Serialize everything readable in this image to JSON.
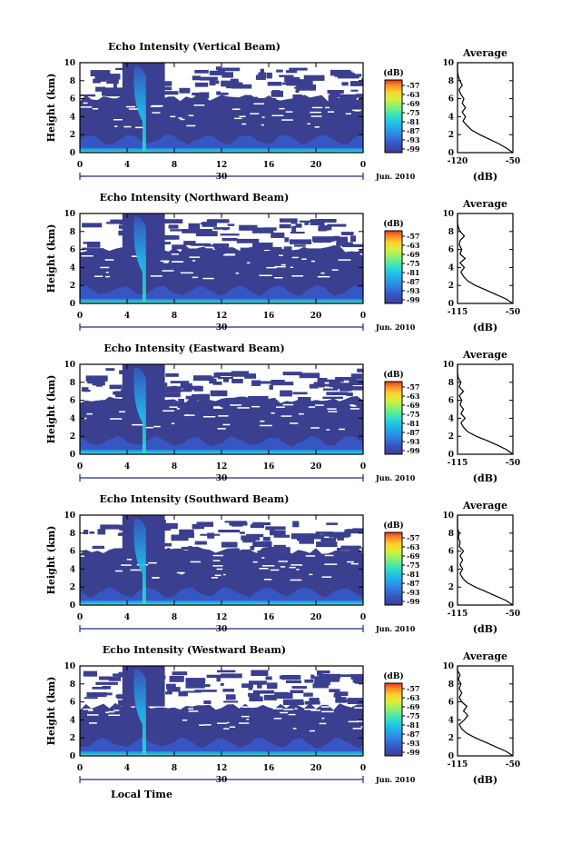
{
  "chart_data": [
    {
      "type": "heatmap",
      "title": "Echo Intensity (Vertical Beam)",
      "ylabel": "Height (km)",
      "xlabel": "",
      "x_ticks": [
        "0",
        "4",
        "8",
        "12",
        "16",
        "20",
        "0"
      ],
      "y_ticks": [
        "0",
        "2",
        "4",
        "6",
        "8",
        "10"
      ],
      "xlim": [
        0,
        24
      ],
      "ylim": [
        0,
        10
      ],
      "day_label": "30",
      "month_label": "Jun. 2010",
      "colorbar": {
        "unit": "(dB)",
        "ticks": [
          "-57",
          "-63",
          "-69",
          "-75",
          "-81",
          "-87",
          "-93",
          "-99"
        ]
      },
      "average": {
        "title": "Average",
        "xlabel": "(dB)",
        "x_ticks": [
          "-120",
          "-50"
        ],
        "xlim": [
          -120,
          -50
        ],
        "y_ticks": [
          "0",
          "2",
          "4",
          "6",
          "8",
          "10"
        ],
        "profile": [
          [
            -50,
            0
          ],
          [
            -58,
            0.5
          ],
          [
            -68,
            1.0
          ],
          [
            -80,
            1.5
          ],
          [
            -92,
            2.0
          ],
          [
            -102,
            2.5
          ],
          [
            -108,
            3.0
          ],
          [
            -113,
            3.5
          ],
          [
            -110,
            4.0
          ],
          [
            -114,
            4.5
          ],
          [
            -110,
            5.0
          ],
          [
            -114,
            5.5
          ],
          [
            -112,
            6.0
          ],
          [
            -116,
            6.5
          ],
          [
            -118,
            7.0
          ],
          [
            -114,
            7.5
          ],
          [
            -117,
            8.0
          ],
          [
            -119,
            8.5
          ],
          [
            -120,
            9.0
          ],
          [
            -120,
            9.5
          ],
          [
            -120,
            10.0
          ]
        ]
      }
    },
    {
      "type": "heatmap",
      "title": "Echo Intensity (Northward Beam)",
      "ylabel": "Height (km)",
      "xlabel": "",
      "x_ticks": [
        "0",
        "4",
        "8",
        "12",
        "16",
        "20",
        "0"
      ],
      "y_ticks": [
        "0",
        "2",
        "4",
        "6",
        "8",
        "10"
      ],
      "xlim": [
        0,
        24
      ],
      "ylim": [
        0,
        10
      ],
      "day_label": "30",
      "month_label": "Jun. 2010",
      "colorbar": {
        "unit": "(dB)",
        "ticks": [
          "-57",
          "-63",
          "-69",
          "-75",
          "-81",
          "-87",
          "-93",
          "-99"
        ]
      },
      "average": {
        "title": "Average",
        "xlabel": "(dB)",
        "x_ticks": [
          "-115",
          "-50"
        ],
        "xlim": [
          -115,
          -50
        ],
        "y_ticks": [
          "0",
          "2",
          "4",
          "6",
          "8",
          "10"
        ],
        "profile": [
          [
            -50,
            0
          ],
          [
            -58,
            0.5
          ],
          [
            -70,
            1.0
          ],
          [
            -82,
            1.5
          ],
          [
            -94,
            2.0
          ],
          [
            -103,
            2.5
          ],
          [
            -108,
            3.0
          ],
          [
            -111,
            3.5
          ],
          [
            -107,
            4.0
          ],
          [
            -112,
            4.5
          ],
          [
            -106,
            5.0
          ],
          [
            -112,
            5.5
          ],
          [
            -110,
            6.0
          ],
          [
            -113,
            6.5
          ],
          [
            -112,
            7.0
          ],
          [
            -107,
            7.5
          ],
          [
            -112,
            8.0
          ],
          [
            -114,
            8.5
          ],
          [
            -115,
            9.0
          ],
          [
            -115,
            9.5
          ],
          [
            -115,
            10.0
          ]
        ]
      }
    },
    {
      "type": "heatmap",
      "title": "Echo Intensity (Eastward Beam)",
      "ylabel": "Height (km)",
      "xlabel": "",
      "x_ticks": [
        "0",
        "4",
        "8",
        "12",
        "16",
        "20",
        "0"
      ],
      "y_ticks": [
        "0",
        "2",
        "4",
        "6",
        "8",
        "10"
      ],
      "xlim": [
        0,
        24
      ],
      "ylim": [
        0,
        10
      ],
      "day_label": "30",
      "month_label": "Jun. 2010",
      "colorbar": {
        "unit": "(dB)",
        "ticks": [
          "-57",
          "-63",
          "-69",
          "-75",
          "-81",
          "-87",
          "-93",
          "-99"
        ]
      },
      "average": {
        "title": "Average",
        "xlabel": "(dB)",
        "x_ticks": [
          "-115",
          "-50"
        ],
        "xlim": [
          -115,
          -50
        ],
        "y_ticks": [
          "0",
          "2",
          "4",
          "6",
          "8",
          "10"
        ],
        "profile": [
          [
            -50,
            0
          ],
          [
            -57,
            0.5
          ],
          [
            -68,
            1.0
          ],
          [
            -80,
            1.5
          ],
          [
            -93,
            2.0
          ],
          [
            -103,
            2.5
          ],
          [
            -108,
            3.0
          ],
          [
            -111,
            3.5
          ],
          [
            -106,
            4.0
          ],
          [
            -111,
            4.5
          ],
          [
            -108,
            5.0
          ],
          [
            -112,
            5.5
          ],
          [
            -110,
            6.0
          ],
          [
            -113,
            6.5
          ],
          [
            -108,
            7.0
          ],
          [
            -113,
            7.5
          ],
          [
            -111,
            8.0
          ],
          [
            -114,
            8.5
          ],
          [
            -115,
            9.0
          ],
          [
            -115,
            9.5
          ],
          [
            -115,
            10.0
          ]
        ]
      }
    },
    {
      "type": "heatmap",
      "title": "Echo Intensity (Southward Beam)",
      "ylabel": "Height (km)",
      "xlabel": "",
      "x_ticks": [
        "0",
        "4",
        "8",
        "12",
        "16",
        "20",
        "0"
      ],
      "y_ticks": [
        "0",
        "2",
        "4",
        "6",
        "8",
        "10"
      ],
      "xlim": [
        0,
        24
      ],
      "ylim": [
        0,
        10
      ],
      "day_label": "30",
      "month_label": "Jun. 2010",
      "colorbar": {
        "unit": "(dB)",
        "ticks": [
          "-57",
          "-63",
          "-69",
          "-75",
          "-81",
          "-87",
          "-93",
          "-99"
        ]
      },
      "average": {
        "title": "Average",
        "xlabel": "(dB)",
        "x_ticks": [
          "-115",
          "-50"
        ],
        "xlim": [
          -115,
          -50
        ],
        "y_ticks": [
          "0",
          "2",
          "4",
          "6",
          "8",
          "10"
        ],
        "profile": [
          [
            -50,
            0
          ],
          [
            -58,
            0.5
          ],
          [
            -70,
            1.0
          ],
          [
            -82,
            1.5
          ],
          [
            -94,
            2.0
          ],
          [
            -104,
            2.5
          ],
          [
            -109,
            3.0
          ],
          [
            -112,
            3.5
          ],
          [
            -109,
            4.0
          ],
          [
            -112,
            4.5
          ],
          [
            -109,
            5.0
          ],
          [
            -112,
            5.5
          ],
          [
            -108,
            6.0
          ],
          [
            -113,
            6.5
          ],
          [
            -112,
            7.0
          ],
          [
            -114,
            7.5
          ],
          [
            -113,
            8.0
          ],
          [
            -115,
            8.5
          ],
          [
            -115,
            9.0
          ],
          [
            -115,
            9.5
          ],
          [
            -115,
            10.0
          ]
        ]
      }
    },
    {
      "type": "heatmap",
      "title": "Echo Intensity (Westward Beam)",
      "ylabel": "Height (km)",
      "xlabel": "Local Time",
      "x_ticks": [
        "0",
        "4",
        "8",
        "12",
        "16",
        "20",
        "0"
      ],
      "y_ticks": [
        "0",
        "2",
        "4",
        "6",
        "8",
        "10"
      ],
      "xlim": [
        0,
        24
      ],
      "ylim": [
        0,
        10
      ],
      "day_label": "30",
      "month_label": "Jun. 2010",
      "colorbar": {
        "unit": "(dB)",
        "ticks": [
          "-57",
          "-63",
          "-69",
          "-75",
          "-81",
          "-87",
          "-93",
          "-99"
        ]
      },
      "average": {
        "title": "Average",
        "xlabel": "(dB)",
        "x_ticks": [
          "-115",
          "-50"
        ],
        "xlim": [
          -115,
          -50
        ],
        "y_ticks": [
          "0",
          "2",
          "4",
          "6",
          "8",
          "10"
        ],
        "profile": [
          [
            -50,
            0
          ],
          [
            -58,
            0.5
          ],
          [
            -70,
            1.0
          ],
          [
            -82,
            1.5
          ],
          [
            -94,
            2.0
          ],
          [
            -104,
            2.5
          ],
          [
            -110,
            3.0
          ],
          [
            -113,
            3.5
          ],
          [
            -107,
            4.0
          ],
          [
            -103,
            4.5
          ],
          [
            -108,
            5.0
          ],
          [
            -104,
            5.5
          ],
          [
            -110,
            6.0
          ],
          [
            -113,
            6.5
          ],
          [
            -110,
            7.0
          ],
          [
            -113,
            7.5
          ],
          [
            -111,
            8.0
          ],
          [
            -114,
            8.5
          ],
          [
            -112,
            9.0
          ],
          [
            -115,
            9.5
          ],
          [
            -115,
            10.0
          ]
        ]
      }
    }
  ],
  "colors": {
    "colormap": [
      "#3a3f8f",
      "#3656c4",
      "#2f86e6",
      "#1fb7ea",
      "#2fe0c8",
      "#7ef07a",
      "#d8f03a",
      "#fcd22c",
      "#fb8a24",
      "#e8321e"
    ],
    "background_echo": "#3a3f8f",
    "axis": "#000000",
    "day_marker": "#1f2a8a"
  }
}
